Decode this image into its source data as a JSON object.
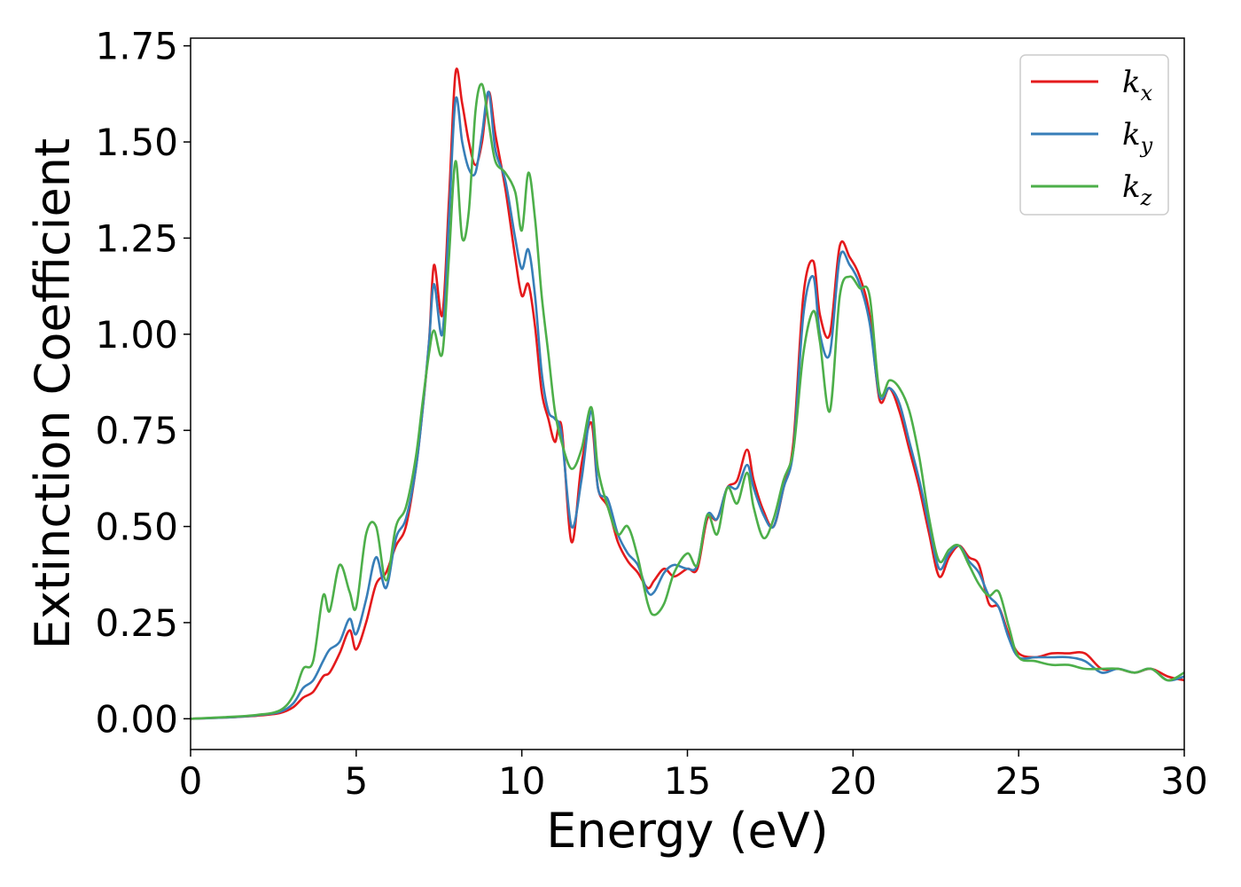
{
  "chart_data": {
    "type": "line",
    "xlabel": "Energy (eV)",
    "ylabel": "Extinction Coefficient",
    "xlim": [
      0,
      30
    ],
    "ylim": [
      -0.08,
      1.77
    ],
    "xticks": [
      0,
      5,
      10,
      15,
      20,
      25,
      30
    ],
    "yticks": [
      0.0,
      0.25,
      0.5,
      0.75,
      1.0,
      1.25,
      1.5,
      1.75
    ],
    "xtick_labels": [
      "0",
      "5",
      "10",
      "15",
      "20",
      "25",
      "30"
    ],
    "ytick_labels": [
      "0.00",
      "0.25",
      "0.50",
      "0.75",
      "1.00",
      "1.25",
      "1.50",
      "1.75"
    ],
    "grid": false,
    "legend_position": "top-right",
    "series": [
      {
        "name": "k_x",
        "label_base": "k",
        "label_sub": "x",
        "color": "#e41a1c",
        "x": [
          0,
          1,
          2,
          2.7,
          3.1,
          3.4,
          3.7,
          4.0,
          4.2,
          4.5,
          4.8,
          5.0,
          5.3,
          5.6,
          5.9,
          6.2,
          6.5,
          6.8,
          7.0,
          7.2,
          7.35,
          7.6,
          7.8,
          8.0,
          8.2,
          8.4,
          8.6,
          8.8,
          9.0,
          9.2,
          9.5,
          9.8,
          10.0,
          10.2,
          10.4,
          10.6,
          10.8,
          11.0,
          11.2,
          11.5,
          11.8,
          12.1,
          12.3,
          12.6,
          12.9,
          13.2,
          13.5,
          13.8,
          14.0,
          14.3,
          14.6,
          15.0,
          15.3,
          15.6,
          15.9,
          16.2,
          16.5,
          16.8,
          17.0,
          17.3,
          17.6,
          17.9,
          18.2,
          18.5,
          18.8,
          19.0,
          19.3,
          19.6,
          19.9,
          20.2,
          20.5,
          20.8,
          21.1,
          21.4,
          21.7,
          22.0,
          22.3,
          22.6,
          22.9,
          23.2,
          23.5,
          23.8,
          24.1,
          24.4,
          24.7,
          25.0,
          25.5,
          26.0,
          26.5,
          27.0,
          27.5,
          28.0,
          28.5,
          29.0,
          29.5,
          30.0
        ],
        "y": [
          0,
          0.003,
          0.008,
          0.015,
          0.03,
          0.055,
          0.07,
          0.11,
          0.12,
          0.17,
          0.23,
          0.18,
          0.25,
          0.35,
          0.38,
          0.45,
          0.5,
          0.65,
          0.8,
          0.98,
          1.18,
          1.05,
          1.35,
          1.68,
          1.6,
          1.5,
          1.44,
          1.5,
          1.63,
          1.52,
          1.38,
          1.2,
          1.1,
          1.13,
          1.02,
          0.85,
          0.78,
          0.72,
          0.76,
          0.46,
          0.66,
          0.77,
          0.6,
          0.55,
          0.46,
          0.41,
          0.38,
          0.34,
          0.36,
          0.39,
          0.37,
          0.39,
          0.39,
          0.52,
          0.52,
          0.6,
          0.62,
          0.7,
          0.62,
          0.54,
          0.5,
          0.6,
          0.72,
          1.1,
          1.19,
          1.05,
          1.0,
          1.23,
          1.2,
          1.15,
          1.05,
          0.83,
          0.86,
          0.8,
          0.7,
          0.6,
          0.48,
          0.37,
          0.42,
          0.45,
          0.42,
          0.4,
          0.3,
          0.29,
          0.22,
          0.17,
          0.16,
          0.17,
          0.17,
          0.17,
          0.13,
          0.13,
          0.12,
          0.13,
          0.11,
          0.1
        ]
      },
      {
        "name": "k_y",
        "label_base": "k",
        "label_sub": "y",
        "color": "#377eb8",
        "x": [
          0,
          1,
          2,
          2.7,
          3.1,
          3.4,
          3.7,
          4.0,
          4.2,
          4.5,
          4.8,
          5.0,
          5.3,
          5.6,
          5.9,
          6.2,
          6.5,
          6.8,
          7.0,
          7.2,
          7.35,
          7.6,
          7.8,
          8.0,
          8.2,
          8.4,
          8.6,
          8.8,
          9.0,
          9.2,
          9.5,
          9.8,
          10.0,
          10.2,
          10.4,
          10.6,
          10.8,
          11.0,
          11.2,
          11.5,
          11.8,
          12.1,
          12.3,
          12.6,
          12.9,
          13.2,
          13.5,
          13.8,
          14.0,
          14.3,
          14.6,
          15.0,
          15.3,
          15.6,
          15.9,
          16.2,
          16.5,
          16.8,
          17.0,
          17.3,
          17.6,
          17.9,
          18.2,
          18.5,
          18.8,
          19.0,
          19.3,
          19.6,
          19.9,
          20.2,
          20.5,
          20.8,
          21.1,
          21.4,
          21.7,
          22.0,
          22.3,
          22.6,
          22.9,
          23.2,
          23.5,
          23.8,
          24.1,
          24.4,
          24.7,
          25.0,
          25.5,
          26.0,
          26.5,
          27.0,
          27.5,
          28.0,
          28.5,
          29.0,
          29.5,
          30.0
        ],
        "y": [
          0,
          0.003,
          0.009,
          0.018,
          0.04,
          0.08,
          0.1,
          0.15,
          0.18,
          0.2,
          0.26,
          0.22,
          0.31,
          0.42,
          0.34,
          0.47,
          0.52,
          0.65,
          0.8,
          0.98,
          1.13,
          1.0,
          1.3,
          1.61,
          1.5,
          1.43,
          1.42,
          1.52,
          1.63,
          1.48,
          1.4,
          1.25,
          1.17,
          1.22,
          1.1,
          0.9,
          0.8,
          0.78,
          0.74,
          0.5,
          0.62,
          0.8,
          0.6,
          0.57,
          0.48,
          0.43,
          0.4,
          0.33,
          0.33,
          0.38,
          0.4,
          0.39,
          0.4,
          0.53,
          0.52,
          0.6,
          0.6,
          0.66,
          0.6,
          0.53,
          0.5,
          0.6,
          0.7,
          1.05,
          1.15,
          1.0,
          0.95,
          1.2,
          1.18,
          1.13,
          1.03,
          0.84,
          0.86,
          0.82,
          0.72,
          0.62,
          0.5,
          0.39,
          0.43,
          0.45,
          0.41,
          0.38,
          0.32,
          0.29,
          0.21,
          0.16,
          0.16,
          0.16,
          0.16,
          0.15,
          0.12,
          0.13,
          0.12,
          0.13,
          0.1,
          0.11
        ]
      },
      {
        "name": "k_z",
        "label_base": "k",
        "label_sub": "z",
        "color": "#4daf4a",
        "x": [
          0,
          1,
          2,
          2.7,
          3.1,
          3.4,
          3.7,
          4.0,
          4.2,
          4.5,
          4.8,
          5.0,
          5.3,
          5.6,
          5.9,
          6.2,
          6.5,
          6.8,
          7.0,
          7.2,
          7.35,
          7.6,
          7.8,
          8.0,
          8.2,
          8.4,
          8.6,
          8.8,
          9.0,
          9.2,
          9.5,
          9.8,
          10.0,
          10.2,
          10.4,
          10.6,
          10.8,
          11.0,
          11.2,
          11.5,
          11.8,
          12.1,
          12.3,
          12.6,
          12.9,
          13.2,
          13.5,
          13.8,
          14.0,
          14.3,
          14.6,
          15.0,
          15.3,
          15.6,
          15.9,
          16.2,
          16.5,
          16.8,
          17.0,
          17.3,
          17.6,
          17.9,
          18.2,
          18.5,
          18.8,
          19.0,
          19.3,
          19.6,
          19.9,
          20.2,
          20.5,
          20.8,
          21.1,
          21.4,
          21.7,
          22.0,
          22.3,
          22.6,
          22.9,
          23.2,
          23.5,
          23.8,
          24.1,
          24.4,
          24.7,
          25.0,
          25.5,
          26.0,
          26.5,
          27.0,
          27.5,
          28.0,
          28.5,
          29.0,
          29.5,
          30.0
        ],
        "y": [
          0,
          0.004,
          0.01,
          0.022,
          0.06,
          0.13,
          0.15,
          0.32,
          0.28,
          0.4,
          0.33,
          0.29,
          0.48,
          0.5,
          0.36,
          0.5,
          0.55,
          0.68,
          0.82,
          0.95,
          1.01,
          0.95,
          1.2,
          1.45,
          1.25,
          1.32,
          1.58,
          1.65,
          1.55,
          1.45,
          1.42,
          1.37,
          1.27,
          1.42,
          1.3,
          1.1,
          0.95,
          0.8,
          0.72,
          0.65,
          0.7,
          0.81,
          0.65,
          0.55,
          0.48,
          0.5,
          0.42,
          0.3,
          0.27,
          0.3,
          0.38,
          0.43,
          0.4,
          0.53,
          0.48,
          0.6,
          0.56,
          0.64,
          0.55,
          0.47,
          0.52,
          0.62,
          0.7,
          0.95,
          1.06,
          0.98,
          0.8,
          1.1,
          1.15,
          1.12,
          1.1,
          0.85,
          0.88,
          0.86,
          0.8,
          0.68,
          0.52,
          0.41,
          0.44,
          0.45,
          0.4,
          0.35,
          0.32,
          0.33,
          0.24,
          0.16,
          0.15,
          0.14,
          0.14,
          0.13,
          0.13,
          0.13,
          0.12,
          0.13,
          0.1,
          0.12
        ]
      }
    ]
  }
}
